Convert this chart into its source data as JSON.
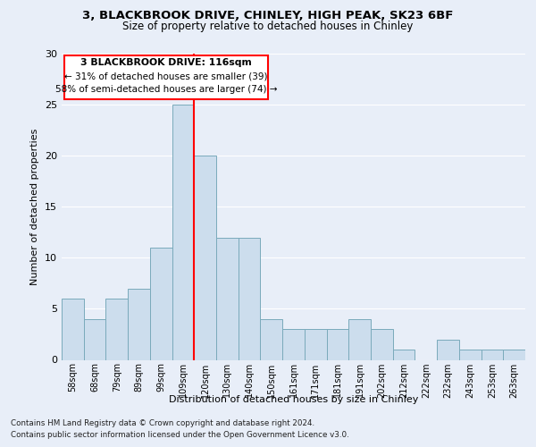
{
  "title_line1": "3, BLACKBROOK DRIVE, CHINLEY, HIGH PEAK, SK23 6BF",
  "title_line2": "Size of property relative to detached houses in Chinley",
  "xlabel": "Distribution of detached houses by size in Chinley",
  "ylabel": "Number of detached properties",
  "bar_labels": [
    "58sqm",
    "68sqm",
    "79sqm",
    "89sqm",
    "99sqm",
    "109sqm",
    "120sqm",
    "130sqm",
    "140sqm",
    "150sqm",
    "161sqm",
    "171sqm",
    "181sqm",
    "191sqm",
    "202sqm",
    "212sqm",
    "222sqm",
    "232sqm",
    "243sqm",
    "253sqm",
    "263sqm"
  ],
  "bar_heights": [
    6,
    4,
    6,
    7,
    11,
    25,
    20,
    12,
    12,
    4,
    3,
    3,
    3,
    4,
    3,
    1,
    0,
    2,
    1,
    1,
    1
  ],
  "bar_color": "#ccdded",
  "bar_edge_color": "#7aaabb",
  "highlight_index": 5,
  "annotation_title": "3 BLACKBROOK DRIVE: 116sqm",
  "annotation_line2": "← 31% of detached houses are smaller (39)",
  "annotation_line3": "58% of semi-detached houses are larger (74) →",
  "ylim": [
    0,
    30
  ],
  "yticks": [
    0,
    5,
    10,
    15,
    20,
    25,
    30
  ],
  "footer_line1": "Contains HM Land Registry data © Crown copyright and database right 2024.",
  "footer_line2": "Contains public sector information licensed under the Open Government Licence v3.0.",
  "background_color": "#e8eef8",
  "plot_background": "#e8eef8",
  "grid_color": "#ffffff"
}
